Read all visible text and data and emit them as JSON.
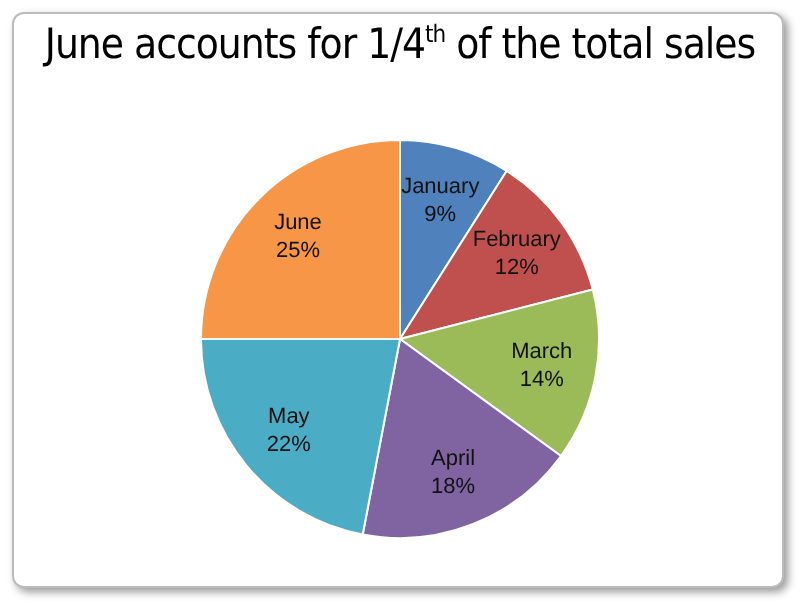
{
  "chart_data": {
    "type": "pie",
    "title": "June accounts for 1/4$^{th}$ of the total sales",
    "categories": [
      "January",
      "February",
      "March",
      "April",
      "May",
      "June"
    ],
    "values": [
      9,
      12,
      14,
      18,
      22,
      25
    ],
    "colors": [
      "#4f81bd",
      "#c0504d",
      "#9bbb59",
      "#8064a2",
      "#4bacc6",
      "#f79646"
    ],
    "value_labels": [
      "9%",
      "12%",
      "14%",
      "18%",
      "22%",
      "25%"
    ],
    "legend": false
  }
}
